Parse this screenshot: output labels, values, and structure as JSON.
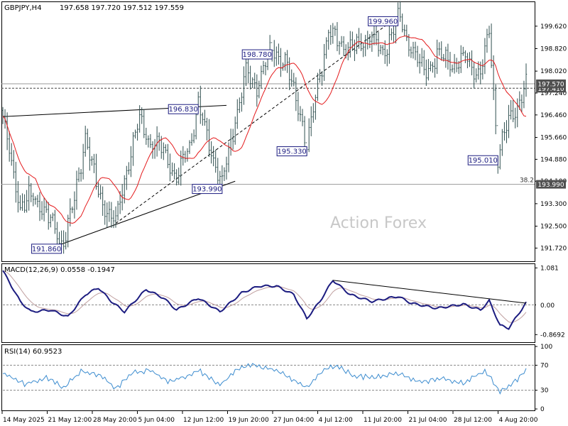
{
  "header": {
    "symbol": "GBPJPY,H4",
    "ohlc": "197.658 197.720 197.512 197.559"
  },
  "watermark": "Action Forex",
  "colors": {
    "candle": "#2f4f4f",
    "ma": "#e41a1c",
    "macd": "#1c1c80",
    "signal": "#c0a0a0",
    "rsi": "#3c8ccf",
    "label_border": "#1c1c80",
    "price_tag": "#505050"
  },
  "chart_data": [
    {
      "type": "candlestick",
      "panel": "price",
      "title": "",
      "ylim": [
        191.3,
        200.4
      ],
      "y_ticks": [
        "199.620",
        "198.820",
        "198.020",
        "197.240",
        "196.460",
        "195.660",
        "194.880",
        "194.100",
        "193.300",
        "192.500",
        "191.720"
      ],
      "x_ticks": [
        "14 May 2025",
        "21 May 12:00",
        "28 May 20:00",
        "5 Jun 04:00",
        "12 Jun 12:00",
        "19 Jun 20:00",
        "27 Jun 04:00",
        "4 Jul 12:00",
        "11 Jul 20:00",
        "21 Jul 04:00",
        "28 Jul 12:00",
        "4 Aug 20:00"
      ],
      "anchors": [
        {
          "t": 0,
          "p": 196.4
        },
        {
          "t": 4,
          "p": 194.6
        },
        {
          "t": 8,
          "p": 193.2
        },
        {
          "t": 14,
          "p": 193.6
        },
        {
          "t": 22,
          "p": 192.7
        },
        {
          "t": 27,
          "p": 191.86
        },
        {
          "t": 33,
          "p": 193.3
        },
        {
          "t": 38,
          "p": 195.8
        },
        {
          "t": 44,
          "p": 193.6
        },
        {
          "t": 52,
          "p": 192.6
        },
        {
          "t": 58,
          "p": 194.9
        },
        {
          "t": 63,
          "p": 196.3
        },
        {
          "t": 68,
          "p": 195.5
        },
        {
          "t": 74,
          "p": 195.2
        },
        {
          "t": 80,
          "p": 194.2
        },
        {
          "t": 86,
          "p": 195.4
        },
        {
          "t": 90,
          "p": 196.83
        },
        {
          "t": 95,
          "p": 195.4
        },
        {
          "t": 101,
          "p": 193.99
        },
        {
          "t": 107,
          "p": 196.3
        },
        {
          "t": 112,
          "p": 197.9
        },
        {
          "t": 117,
          "p": 197.5
        },
        {
          "t": 124,
          "p": 198.78
        },
        {
          "t": 130,
          "p": 198.3
        },
        {
          "t": 136,
          "p": 196.9
        },
        {
          "t": 140,
          "p": 195.33
        },
        {
          "t": 146,
          "p": 197.9
        },
        {
          "t": 150,
          "p": 199.4
        },
        {
          "t": 156,
          "p": 199.0
        },
        {
          "t": 162,
          "p": 198.8
        },
        {
          "t": 169,
          "p": 199.3
        },
        {
          "t": 175,
          "p": 198.6
        },
        {
          "t": 182,
          "p": 199.96
        },
        {
          "t": 188,
          "p": 198.9
        },
        {
          "t": 194,
          "p": 198.0
        },
        {
          "t": 201,
          "p": 198.6
        },
        {
          "t": 208,
          "p": 198.3
        },
        {
          "t": 214,
          "p": 198.5
        },
        {
          "t": 220,
          "p": 197.8
        },
        {
          "t": 224,
          "p": 199.5
        },
        {
          "t": 228,
          "p": 195.01
        },
        {
          "t": 233,
          "p": 196.3
        },
        {
          "t": 238,
          "p": 196.9
        },
        {
          "t": 241,
          "p": 197.56
        }
      ],
      "moving_average": "red line",
      "callouts": [
        {
          "label": "199.960",
          "t": 182,
          "p": 199.96
        },
        {
          "label": "198.780",
          "t": 124,
          "p": 198.78
        },
        {
          "label": "196.830",
          "t": 90,
          "p": 196.83
        },
        {
          "label": "195.330",
          "t": 140,
          "p": 195.33
        },
        {
          "label": "195.010",
          "t": 228,
          "p": 195.01
        },
        {
          "label": "193.990",
          "t": 101,
          "p": 193.99
        },
        {
          "label": "191.860",
          "t": 27,
          "p": 191.86
        }
      ],
      "level_lines": [
        {
          "p": 197.41,
          "style": "dashed",
          "label": "197.410"
        },
        {
          "p": 197.57,
          "style": "solid",
          "label": "197.570"
        },
        {
          "p": 193.99,
          "style": "solid",
          "label": "193.990",
          "fib": "38.2"
        }
      ],
      "trendlines": [
        {
          "from": {
            "t": 0,
            "p": 196.4
          },
          "to": {
            "t": 103,
            "p": 196.8
          },
          "style": "solid"
        },
        {
          "from": {
            "t": 27,
            "p": 191.86
          },
          "to": {
            "t": 107,
            "p": 194.1
          },
          "style": "solid"
        },
        {
          "from": {
            "t": 52,
            "p": 192.6
          },
          "to": {
            "t": 182,
            "p": 199.96
          },
          "style": "dashed"
        }
      ]
    },
    {
      "type": "line",
      "panel": "macd",
      "title": "MACD(12,26,9) 0.0558 -0.1947",
      "ylim": [
        -1.05,
        1.15
      ],
      "y_ticks": [
        "1.081",
        "0.00",
        "-0.8692"
      ],
      "zero_tag": "0.00",
      "anchors": [
        {
          "t": 0,
          "v": 1.0
        },
        {
          "t": 8,
          "v": 0.1
        },
        {
          "t": 13,
          "v": -0.2
        },
        {
          "t": 22,
          "v": -0.15
        },
        {
          "t": 30,
          "v": -0.35
        },
        {
          "t": 38,
          "v": 0.3
        },
        {
          "t": 44,
          "v": 0.5
        },
        {
          "t": 50,
          "v": 0.1
        },
        {
          "t": 56,
          "v": -0.2
        },
        {
          "t": 66,
          "v": 0.45
        },
        {
          "t": 74,
          "v": 0.2
        },
        {
          "t": 80,
          "v": -0.15
        },
        {
          "t": 90,
          "v": 0.2
        },
        {
          "t": 100,
          "v": -0.2
        },
        {
          "t": 110,
          "v": 0.35
        },
        {
          "t": 118,
          "v": 0.55
        },
        {
          "t": 126,
          "v": 0.55
        },
        {
          "t": 134,
          "v": 0.3
        },
        {
          "t": 140,
          "v": -0.4
        },
        {
          "t": 146,
          "v": 0.1
        },
        {
          "t": 152,
          "v": 0.72
        },
        {
          "t": 160,
          "v": 0.3
        },
        {
          "t": 170,
          "v": 0.1
        },
        {
          "t": 182,
          "v": 0.25
        },
        {
          "t": 188,
          "v": 0.05
        },
        {
          "t": 200,
          "v": -0.1
        },
        {
          "t": 212,
          "v": 0.02
        },
        {
          "t": 220,
          "v": -0.15
        },
        {
          "t": 224,
          "v": 0.12
        },
        {
          "t": 229,
          "v": -0.6
        },
        {
          "t": 233,
          "v": -0.68
        },
        {
          "t": 241,
          "v": 0.06
        }
      ],
      "trendline": {
        "from": {
          "t": 152,
          "v": 0.72
        },
        "to": {
          "t": 241,
          "v": 0.05
        }
      }
    },
    {
      "type": "line",
      "panel": "rsi",
      "title": "RSI(14) 60.9523",
      "ylim": [
        0,
        100
      ],
      "y_ticks": [
        "100",
        "70",
        "30",
        "0"
      ],
      "levels": [
        70,
        30
      ],
      "anchors": [
        {
          "t": 0,
          "v": 58
        },
        {
          "t": 10,
          "v": 40
        },
        {
          "t": 20,
          "v": 50
        },
        {
          "t": 28,
          "v": 35
        },
        {
          "t": 36,
          "v": 60
        },
        {
          "t": 44,
          "v": 55
        },
        {
          "t": 52,
          "v": 33
        },
        {
          "t": 60,
          "v": 58
        },
        {
          "t": 68,
          "v": 62
        },
        {
          "t": 76,
          "v": 44
        },
        {
          "t": 84,
          "v": 52
        },
        {
          "t": 90,
          "v": 62
        },
        {
          "t": 100,
          "v": 38
        },
        {
          "t": 108,
          "v": 63
        },
        {
          "t": 114,
          "v": 71
        },
        {
          "t": 124,
          "v": 64
        },
        {
          "t": 132,
          "v": 50
        },
        {
          "t": 140,
          "v": 34
        },
        {
          "t": 148,
          "v": 63
        },
        {
          "t": 154,
          "v": 69
        },
        {
          "t": 162,
          "v": 52
        },
        {
          "t": 172,
          "v": 51
        },
        {
          "t": 182,
          "v": 57
        },
        {
          "t": 192,
          "v": 43
        },
        {
          "t": 202,
          "v": 49
        },
        {
          "t": 212,
          "v": 42
        },
        {
          "t": 222,
          "v": 62
        },
        {
          "t": 229,
          "v": 27
        },
        {
          "t": 234,
          "v": 38
        },
        {
          "t": 241,
          "v": 61
        }
      ]
    }
  ]
}
